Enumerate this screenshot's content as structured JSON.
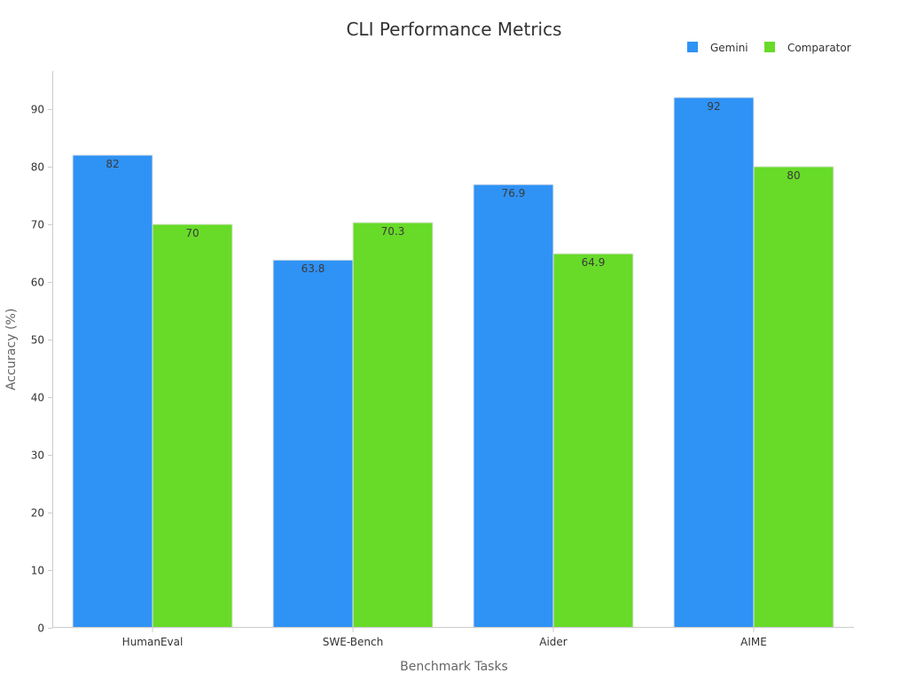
{
  "chart_data": {
    "type": "bar",
    "title": "CLI Performance Metrics",
    "xlabel": "Benchmark Tasks",
    "ylabel": "Accuracy (%)",
    "categories": [
      "HumanEval",
      "SWE-Bench",
      "Aider",
      "AIME"
    ],
    "series": [
      {
        "name": "Gemini",
        "color": "#2f92f5",
        "values": [
          82,
          63.8,
          76.9,
          92
        ]
      },
      {
        "name": "Comparator",
        "color": "#67db28",
        "values": [
          70,
          70.3,
          64.9,
          80
        ]
      }
    ],
    "ylim": [
      0,
      96.6
    ],
    "yticks": [
      0,
      10,
      20,
      30,
      40,
      50,
      60,
      70,
      80,
      90
    ],
    "grid": false,
    "legend_position": "top-right",
    "data_labels": true
  }
}
